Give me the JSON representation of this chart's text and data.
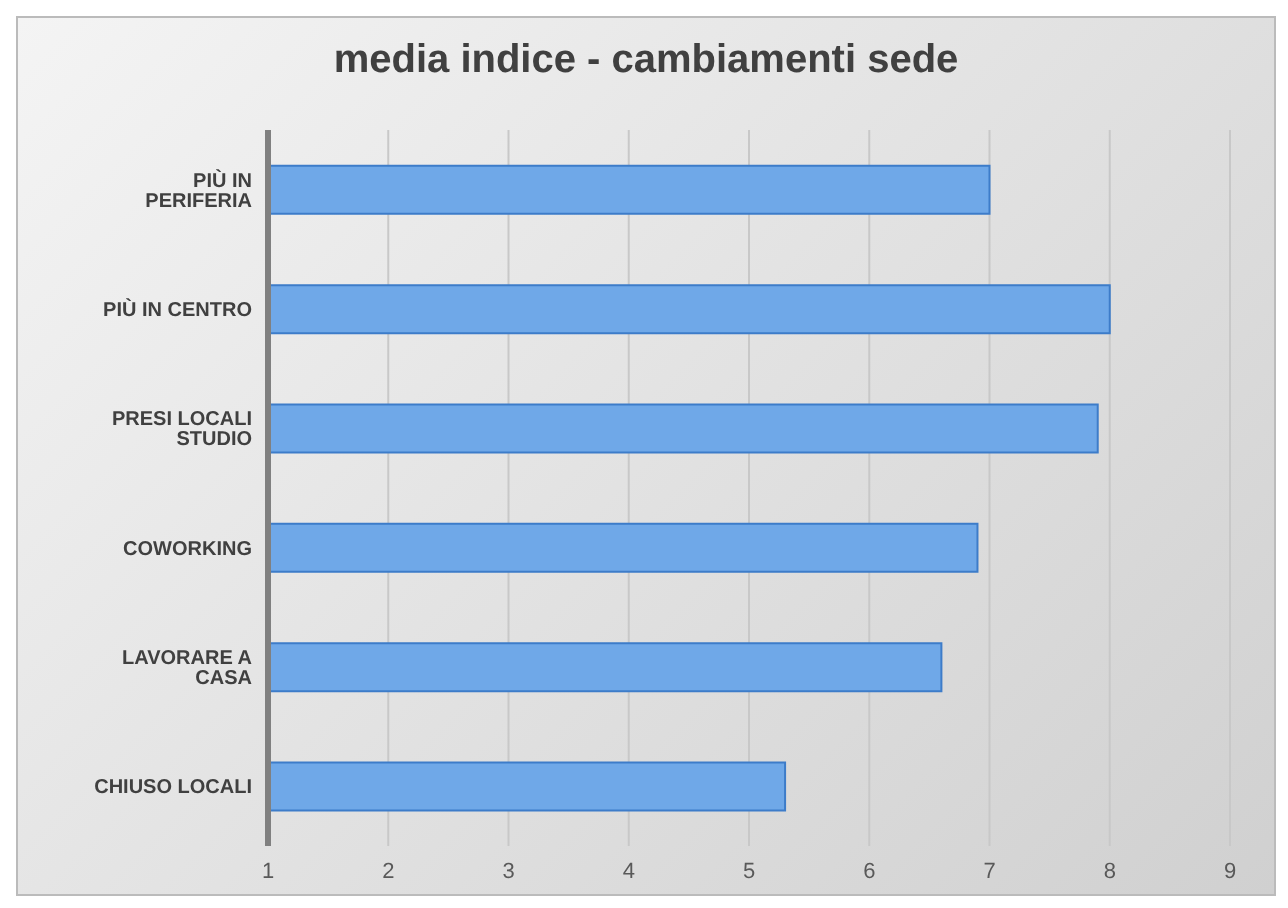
{
  "chart_data": {
    "type": "bar",
    "orientation": "horizontal",
    "title": "media indice - cambiamenti sede",
    "categories": [
      "PIÙ IN PERIFERIA",
      "PIÙ IN CENTRO",
      "PRESI LOCALI STUDIO",
      "COWORKING",
      "LAVORARE A CASA",
      "CHIUSO LOCALI"
    ],
    "values": [
      7.0,
      8.0,
      7.9,
      6.9,
      6.6,
      5.3
    ],
    "color": "#6fa8e8",
    "xlim": [
      1,
      9
    ],
    "xticks": [
      1,
      2,
      3,
      4,
      5,
      6,
      7,
      8,
      9
    ],
    "grid": "x"
  }
}
